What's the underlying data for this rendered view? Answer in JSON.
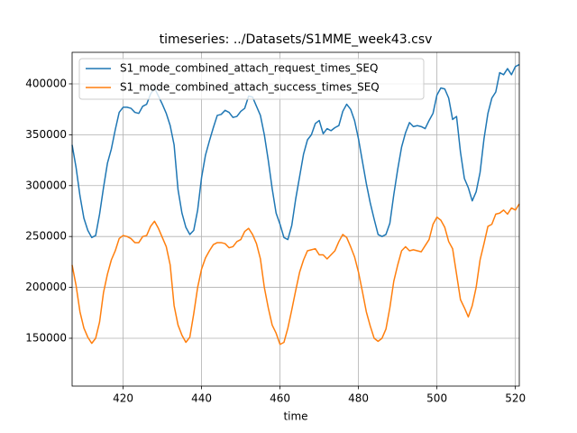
{
  "chart_data": {
    "type": "line",
    "title": "timeseries: ../Datasets/S1MME_week43.csv",
    "x_label": "time",
    "x": [
      407,
      408,
      409,
      410,
      411,
      412,
      413,
      414,
      415,
      416,
      417,
      418,
      419,
      420,
      421,
      422,
      423,
      424,
      425,
      426,
      427,
      428,
      429,
      430,
      431,
      432,
      433,
      434,
      435,
      436,
      437,
      438,
      439,
      440,
      441,
      442,
      443,
      444,
      445,
      446,
      447,
      448,
      449,
      450,
      451,
      452,
      453,
      454,
      455,
      456,
      457,
      458,
      459,
      460,
      461,
      462,
      463,
      464,
      465,
      466,
      467,
      468,
      469,
      470,
      471,
      472,
      473,
      474,
      475,
      476,
      477,
      478,
      479,
      480,
      481,
      482,
      483,
      484,
      485,
      486,
      487,
      488,
      489,
      490,
      491,
      492,
      493,
      494,
      495,
      496,
      497,
      498,
      499,
      500,
      501,
      502,
      503,
      504,
      505,
      506,
      507,
      508,
      509,
      510,
      511,
      512,
      513,
      514,
      515,
      516,
      517,
      518,
      519,
      520,
      521
    ],
    "series": [
      {
        "name": "S1_mode_combined_attach_request_times_SEQ",
        "color": "#1f77b4",
        "values": [
          340000,
          318000,
          290000,
          268000,
          256000,
          249000,
          251000,
          272000,
          298000,
          322000,
          336000,
          355000,
          372000,
          377000,
          377000,
          376000,
          372000,
          371000,
          378000,
          380000,
          390000,
          396000,
          388000,
          380000,
          371000,
          359000,
          340000,
          296000,
          273000,
          259000,
          252000,
          256000,
          276000,
          308000,
          330000,
          344000,
          357000,
          369000,
          370000,
          374000,
          372000,
          367000,
          368000,
          373000,
          376000,
          388000,
          387000,
          378000,
          369000,
          350000,
          325000,
          297000,
          273000,
          262000,
          249000,
          247000,
          261000,
          287000,
          309000,
          331000,
          345000,
          350000,
          361000,
          364000,
          351000,
          356000,
          354000,
          357000,
          359000,
          373000,
          380000,
          375000,
          364000,
          346000,
          324000,
          302000,
          283000,
          267000,
          252000,
          250000,
          252000,
          263000,
          291000,
          316000,
          338000,
          352000,
          362000,
          358000,
          359000,
          358000,
          356000,
          364000,
          371000,
          389000,
          396000,
          395000,
          386000,
          365000,
          368000,
          333000,
          307000,
          298000,
          285000,
          294000,
          313000,
          346000,
          371000,
          386000,
          392000,
          411000,
          409000,
          415000,
          409000,
          417000,
          419000
        ]
      },
      {
        "name": "S1_mode_combined_attach_success_times_SEQ",
        "color": "#ff7f0e",
        "values": [
          222000,
          202000,
          176000,
          160000,
          151000,
          145000,
          150000,
          166000,
          195000,
          213000,
          227000,
          236000,
          248000,
          251000,
          250000,
          248000,
          244000,
          244000,
          250000,
          251000,
          260000,
          265000,
          258000,
          249000,
          240000,
          222000,
          182000,
          163000,
          153000,
          146000,
          151000,
          174000,
          200000,
          218000,
          229000,
          236000,
          242000,
          244000,
          244000,
          243000,
          239000,
          240000,
          245000,
          247000,
          255000,
          258000,
          252000,
          243000,
          228000,
          200000,
          180000,
          163000,
          155000,
          144000,
          146000,
          160000,
          178000,
          197000,
          215000,
          227000,
          236000,
          237000,
          238000,
          232000,
          232000,
          228000,
          232000,
          236000,
          245000,
          252000,
          249000,
          240000,
          230000,
          215000,
          196000,
          176000,
          162000,
          150000,
          147000,
          150000,
          159000,
          180000,
          206000,
          222000,
          236000,
          240000,
          236000,
          237000,
          236000,
          235000,
          241000,
          247000,
          262000,
          269000,
          266000,
          259000,
          245000,
          238000,
          213000,
          188000,
          180000,
          171000,
          182000,
          200000,
          227000,
          243000,
          260000,
          262000,
          272000,
          273000,
          276000,
          272000,
          278000,
          276000,
          282000
        ]
      }
    ],
    "xlim": [
      407,
      521
    ],
    "xticks": [
      420,
      440,
      460,
      480,
      500,
      520
    ],
    "ylim": [
      103000,
      431000
    ],
    "yticks": [
      150000,
      200000,
      250000,
      300000,
      350000,
      400000
    ],
    "grid": true,
    "legend": "upper left"
  }
}
